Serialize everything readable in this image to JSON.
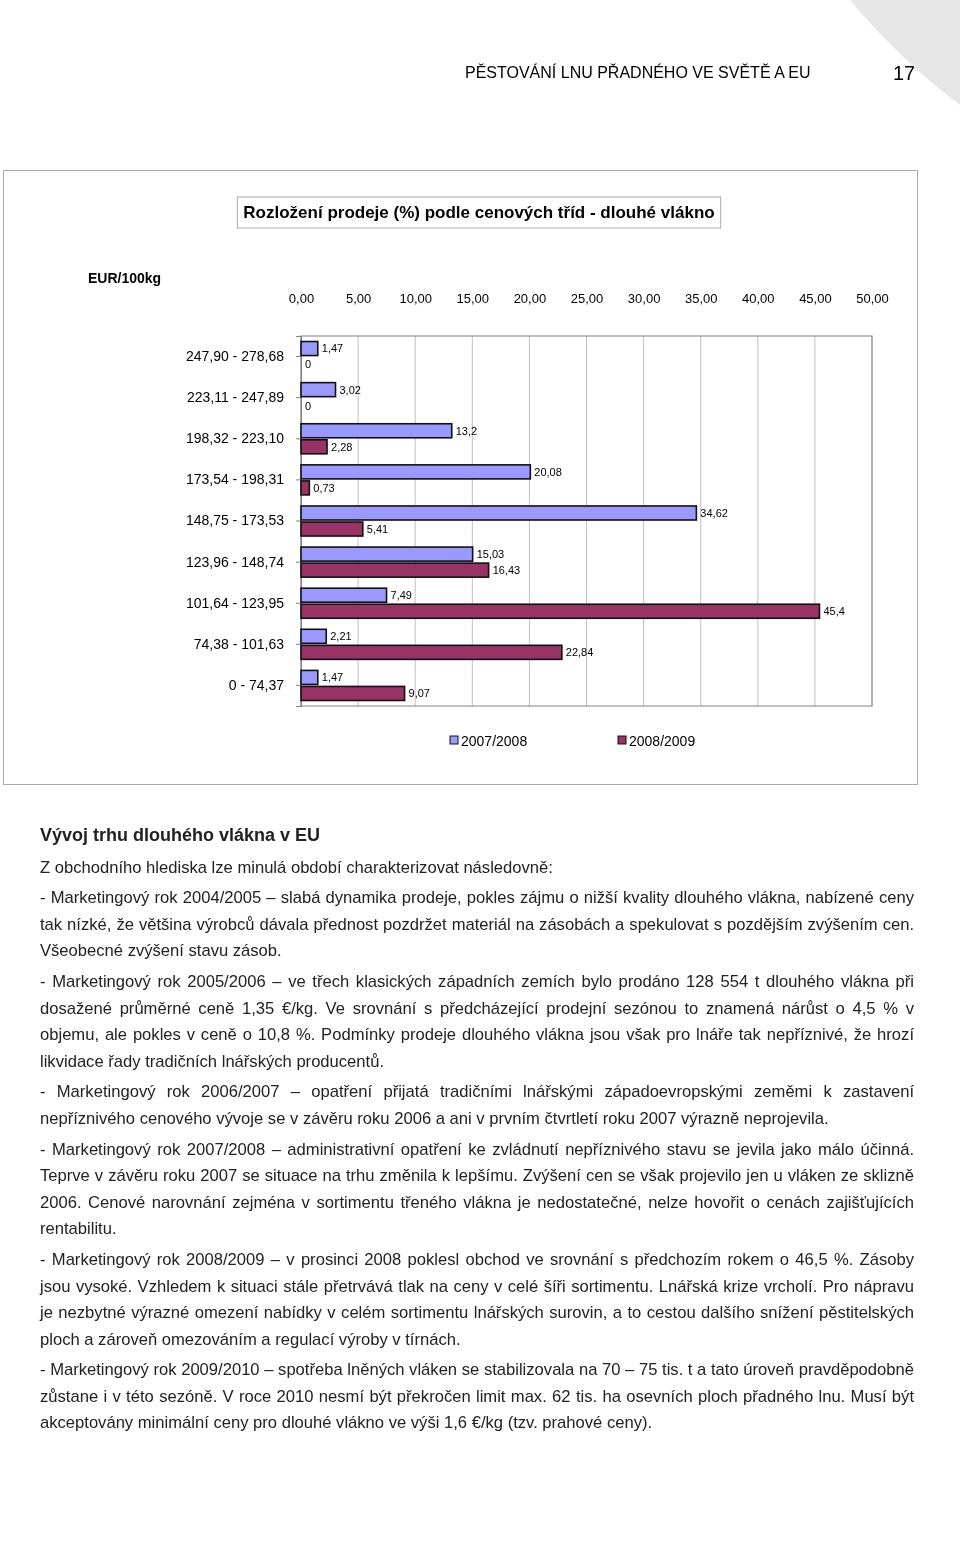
{
  "chart_data": {
    "type": "bar",
    "orientation": "horizontal",
    "title": "Rozložení prodeje (%) podle cenových tříd - dlouhé vlákno",
    "ylabel": "EUR/100kg",
    "categories": [
      "247,90 - 278,68",
      "223,11 - 247,89",
      "198,32 - 223,10",
      "173,54 - 198,31",
      "148,75 - 173,53",
      "123,96 - 148,74",
      "101,64 - 123,95",
      "74,38 - 101,63",
      "0 - 74,37"
    ],
    "series": [
      {
        "name": "2007/2008",
        "color": "#9999ff",
        "values": [
          1.47,
          3.02,
          13.2,
          20.08,
          34.62,
          15.03,
          7.49,
          2.21,
          1.47
        ],
        "value_labels": [
          "1,47",
          "3,02",
          "13,2",
          "20,08",
          "34,62",
          "15,03",
          "7,49",
          "2,21",
          "1,47"
        ]
      },
      {
        "name": "2008/2009",
        "color": "#993366",
        "values": [
          0,
          0,
          2.28,
          0.73,
          5.41,
          16.43,
          45.4,
          22.84,
          9.07
        ],
        "value_labels": [
          "0",
          "0",
          "2,28",
          "0,73",
          "5,41",
          "16,43",
          "45,4",
          "22,84",
          "9,07"
        ]
      }
    ],
    "xlim": [
      0,
      50
    ],
    "xticks": [
      {
        "value": 0,
        "label": "0,00"
      },
      {
        "value": 5,
        "label": "5,00"
      },
      {
        "value": 10,
        "label": "10,00"
      },
      {
        "value": 15,
        "label": "15,00"
      },
      {
        "value": 20,
        "label": "20,00"
      },
      {
        "value": 25,
        "label": "25,00"
      },
      {
        "value": 30,
        "label": "30,00"
      },
      {
        "value": 35,
        "label": "35,00"
      },
      {
        "value": 40,
        "label": "40,00"
      },
      {
        "value": 45,
        "label": "45,00"
      },
      {
        "value": 50,
        "label": "50,00"
      }
    ],
    "grid": "x",
    "legend": "bottom",
    "annotations": [
      "PĚSTOVÁNÍ LNU PŘADNÉHO VE SVĚTĚ A EU",
      "17",
      "Vývoj trhu dlouhého vlákna v EU",
      "Z obchodního hlediska lze minulá období charakterizovat následovně:",
      "- Marketingový rok 2004/2005 – slabá dynamika prodeje, pokles zájmu o nižší kvality dlouhého vlákna, nabízené ceny tak nízké, že většina výrobců dávala přednost pozdržet materiál na zásobách a spekulovat s pozdějším zvýšením cen. Všeobecné zvýšení stavu zásob.",
      "- Marketingový rok 2005/2006 – ve třech klasických západních zemích bylo prodáno 128 554 t dlouhého vlákna při dosažené průměrné ceně 1,35 €/kg. Ve srovnání s předcházející prodejní sezónou to znamená nárůst o 4,5 % v objemu, ale pokles v ceně o 10,8 %. Podmínky prodeje dlouhého vlákna jsou však pro lnáře tak nepříznivé, že hrozí likvidace řady tradičních lnářských producentů.",
      "- Marketingový rok 2006/2007 – opatření přijatá tradičními lnářskými západoevropskými zeměmi k zastavení nepříznivého cenového vývoje se v závěru roku 2006 a ani v prvním čtvrtletí roku 2007 výrazně neprojevila.",
      "- Marketingový rok 2007/2008 – administrativní opatření ke zvládnutí nepříznivého stavu se jevila jako málo účinná. Teprve v závěru roku 2007 se situace na trhu změnila k lepšímu. Zvýšení cen se však projevilo jen u vláken ze sklizně 2006. Cenové narovnání zejména v sortimentu třeného vlákna je nedostatečné, nelze hovořit o cenách zajišťujících rentabilitu.",
      "- Marketingový rok 2008/2009 – v prosinci 2008 poklesl obchod ve srovnání s předchozím rokem o 46,5 %. Zásoby jsou vysoké. Vzhledem k situaci stále přetrvává tlak na ceny v celé šíři sortimentu. Lnářská krize vrcholí. Pro nápravu je nezbytné výrazné omezení nabídky v celém sortimentu lnářských surovin, a to cestou dalšího snížení pěstitelských ploch a zároveň omezováním a regulací výroby v tírnách.",
      "- Marketingový rok 2009/2010 – spotřeba lněných vláken se stabilizovala na 70 – 75 tis. t a tato úroveň pravděpodobně zůstane i v této sezóně. V roce 2010 nesmí být překročen limit max. 62 tis. ha osevních ploch přadného lnu. Musí být akceptovány minimální ceny pro dlouhé vlákno ve výši 1,6 €/kg (tzv. prahové ceny)."
    ]
  }
}
